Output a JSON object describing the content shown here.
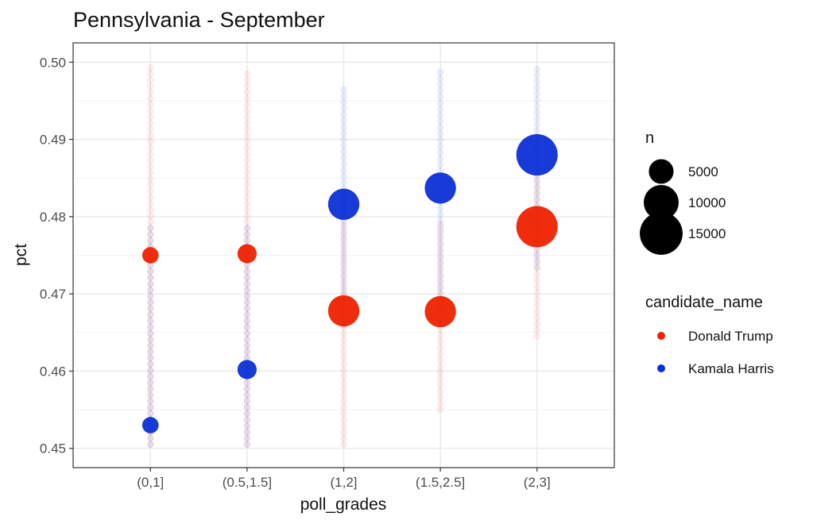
{
  "chart_data": {
    "type": "scatter",
    "title": "Pennsylvania - September",
    "xlabel": "poll_grades",
    "ylabel": "pct",
    "categories": [
      "(0,1]",
      "(0.5,1.5]",
      "(1,2]",
      "(1.5,2.5]",
      "(2,3]"
    ],
    "ylim": [
      0.4475,
      0.5025
    ],
    "yticks": [
      0.45,
      0.46,
      0.47,
      0.48,
      0.49,
      0.5
    ],
    "ytick_labels": [
      "0.45",
      "0.46",
      "0.47",
      "0.48",
      "0.49",
      "0.50"
    ],
    "grid": true,
    "legend_position": "right",
    "series": [
      {
        "name": "Donald Trump",
        "color": "#ee2200",
        "summary_points": [
          {
            "category": "(0,1]",
            "pct": 0.475,
            "n": 2200
          },
          {
            "category": "(0.5,1.5]",
            "pct": 0.4752,
            "n": 3000
          },
          {
            "category": "(1,2]",
            "pct": 0.4678,
            "n": 8000
          },
          {
            "category": "(1.5,2.5]",
            "pct": 0.4677,
            "n": 8000
          },
          {
            "category": "(2,3]",
            "pct": 0.4787,
            "n": 14000
          }
        ],
        "sample_ranges": [
          {
            "category": "(0,1]",
            "min": 0.4505,
            "max": 0.5
          },
          {
            "category": "(0.5,1.5]",
            "min": 0.4505,
            "max": 0.499
          },
          {
            "category": "(1,2]",
            "min": 0.4505,
            "max": 0.483
          },
          {
            "category": "(1.5,2.5]",
            "min": 0.455,
            "max": 0.4795
          },
          {
            "category": "(2,3]",
            "min": 0.4645,
            "max": 0.49
          }
        ]
      },
      {
        "name": "Kamala Harris",
        "color": "#0b2fd6",
        "summary_points": [
          {
            "category": "(0,1]",
            "pct": 0.453,
            "n": 2200
          },
          {
            "category": "(0.5,1.5]",
            "pct": 0.4602,
            "n": 3000
          },
          {
            "category": "(1,2]",
            "pct": 0.4816,
            "n": 8000
          },
          {
            "category": "(1.5,2.5]",
            "pct": 0.4837,
            "n": 8000
          },
          {
            "category": "(2,3]",
            "pct": 0.488,
            "n": 14000
          }
        ],
        "sample_ranges": [
          {
            "category": "(0,1]",
            "min": 0.4505,
            "max": 0.479
          },
          {
            "category": "(0.5,1.5]",
            "min": 0.4505,
            "max": 0.479
          },
          {
            "category": "(1,2]",
            "min": 0.466,
            "max": 0.4965
          },
          {
            "category": "(1.5,2.5]",
            "min": 0.4675,
            "max": 0.499
          },
          {
            "category": "(2,3]",
            "min": 0.4735,
            "max": 0.4995
          }
        ]
      }
    ],
    "legend": {
      "size_title": "n",
      "size_entries": [
        {
          "label": "5000",
          "value": 5000
        },
        {
          "label": "10000",
          "value": 10000
        },
        {
          "label": "15000",
          "value": 15000
        }
      ],
      "color_title": "candidate_name",
      "color_entries": [
        {
          "label": "Donald Trump",
          "color": "#ee2200"
        },
        {
          "label": "Kamala Harris",
          "color": "#0b2fd6"
        }
      ]
    }
  }
}
